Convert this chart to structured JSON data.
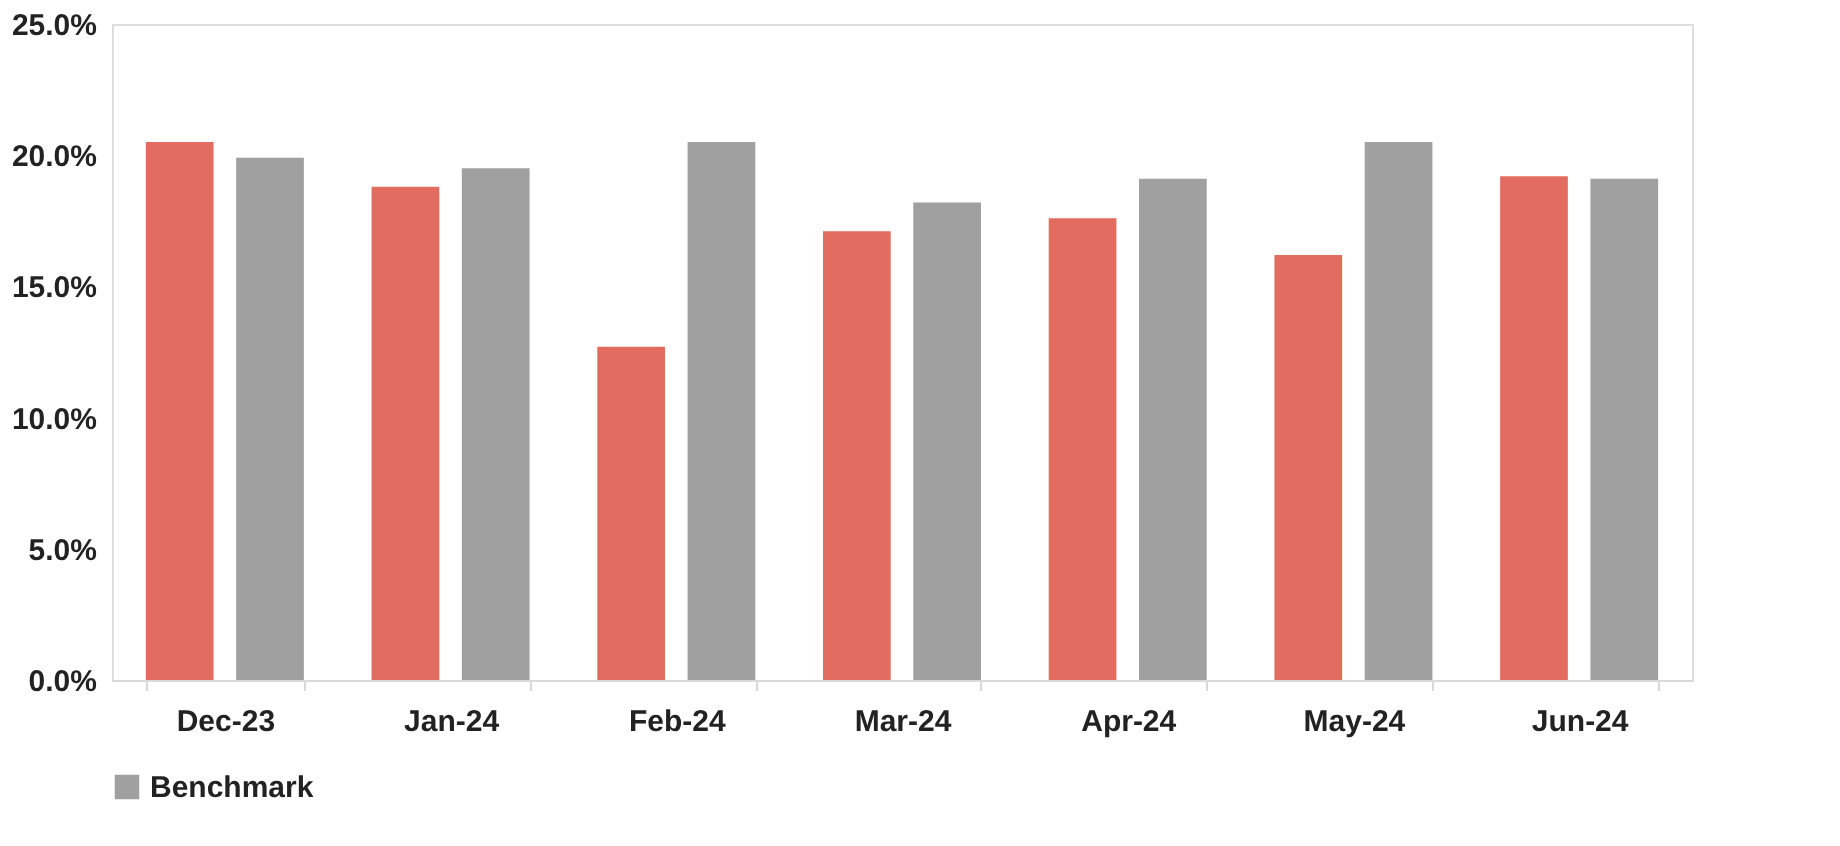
{
  "chart_data": {
    "type": "bar",
    "categories": [
      "Dec-23",
      "Jan-24",
      "Feb-24",
      "Mar-24",
      "Apr-24",
      "May-24",
      "Jun-24"
    ],
    "series": [
      {
        "color": "#e36c60",
        "values": [
          20.5,
          18.8,
          12.7,
          17.1,
          17.6,
          16.2,
          19.2
        ]
      },
      {
        "name": "Benchmark",
        "color": "#a0a0a0",
        "values": [
          19.9,
          19.5,
          20.5,
          18.2,
          19.1,
          20.5,
          19.1
        ]
      }
    ],
    "ylim": [
      0,
      25
    ],
    "yticks": [
      {
        "value": 0,
        "label": "0.0%"
      },
      {
        "value": 5,
        "label": "5.0%"
      },
      {
        "value": 10,
        "label": "10.0%"
      },
      {
        "value": 15,
        "label": "15.0%"
      },
      {
        "value": 20,
        "label": "20.0%"
      },
      {
        "value": 25,
        "label": "25.0%"
      }
    ],
    "grid": false,
    "legend": "bottom"
  }
}
